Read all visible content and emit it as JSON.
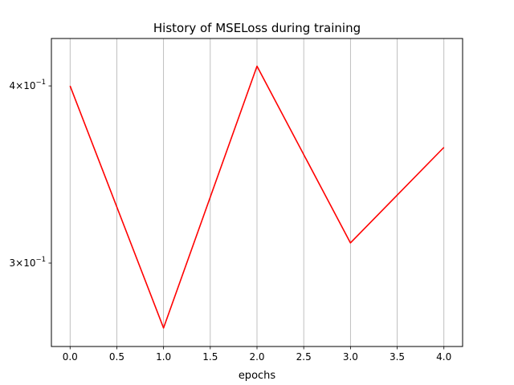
{
  "chart_data": {
    "type": "line",
    "title": "History of MSELoss during training",
    "xlabel": "epochs",
    "ylabel": "",
    "yscale": "log",
    "x": [
      0,
      1,
      2,
      3,
      4
    ],
    "series": [
      {
        "values": [
          0.4,
          0.27,
          0.413,
          0.31,
          0.362
        ],
        "color": "#ff0000"
      }
    ],
    "xlim": [
      -0.2,
      4.2
    ],
    "ylim": [
      0.262,
      0.432
    ],
    "xticks": [
      0.0,
      0.5,
      1.0,
      1.5,
      2.0,
      2.5,
      3.0,
      3.5,
      4.0
    ],
    "xtick_labels": [
      "0.0",
      "0.5",
      "1.0",
      "1.5",
      "2.0",
      "2.5",
      "3.0",
      "3.5",
      "4.0"
    ],
    "yticks": [
      0.3,
      0.4
    ],
    "ytick_mantissas": [
      "3",
      "4"
    ],
    "ytick_base": "10",
    "ytick_exponent": "−1",
    "grid": "vertical"
  }
}
